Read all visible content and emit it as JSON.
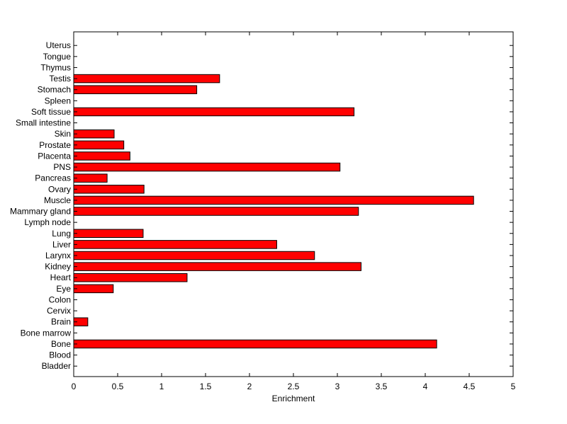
{
  "chart_data": {
    "type": "bar",
    "orientation": "horizontal",
    "xlabel": "Enrichment",
    "ylabel": "",
    "title": "",
    "xlim": [
      0,
      5
    ],
    "x_ticks": [
      "0",
      "0.5",
      "1",
      "1.5",
      "2",
      "2.5",
      "3",
      "3.5",
      "4",
      "4.5",
      "5"
    ],
    "grid": false,
    "bar_color": "#ff0000",
    "bar_edge_color": "#000000",
    "categories": [
      "Bladder",
      "Blood",
      "Bone",
      "Bone marrow",
      "Brain",
      "Cervix",
      "Colon",
      "Eye",
      "Heart",
      "Kidney",
      "Larynx",
      "Liver",
      "Lung",
      "Lymph node",
      "Mammary gland",
      "Muscle",
      "Ovary",
      "Pancreas",
      "PNS",
      "Placenta",
      "Prostate",
      "Skin",
      "Small intestine",
      "Soft tissue",
      "Spleen",
      "Stomach",
      "Testis",
      "Thymus",
      "Tongue",
      "Uterus"
    ],
    "values": [
      0,
      0,
      4.13,
      0,
      0.16,
      0,
      0,
      0.45,
      1.29,
      3.27,
      2.74,
      2.31,
      0.79,
      0,
      3.24,
      4.55,
      0.8,
      0.38,
      3.03,
      0.64,
      0.57,
      0.46,
      0,
      3.19,
      0,
      1.4,
      1.66,
      0,
      0,
      0
    ]
  }
}
